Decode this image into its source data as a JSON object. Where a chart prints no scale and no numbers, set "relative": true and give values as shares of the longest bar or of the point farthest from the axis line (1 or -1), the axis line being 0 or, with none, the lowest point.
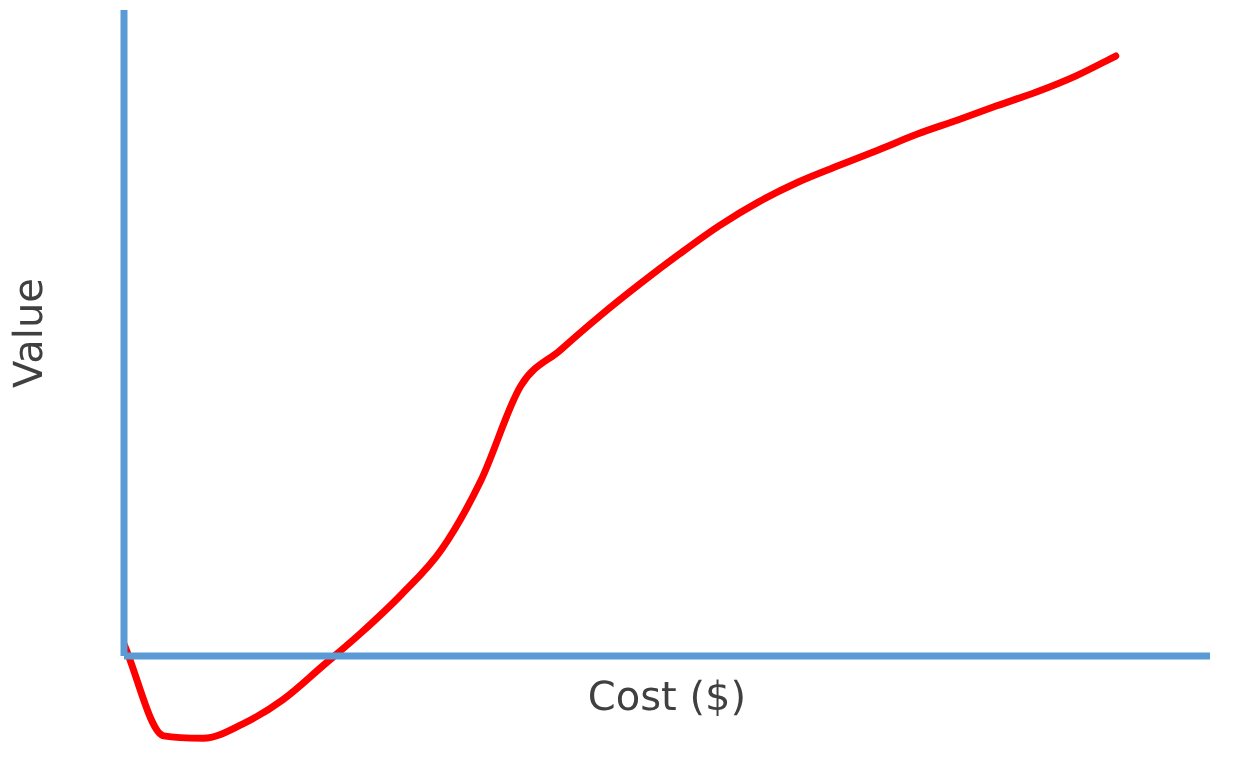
{
  "chart_data": {
    "type": "line",
    "relative": true,
    "xlabel": "Cost ($)",
    "ylabel": "Value",
    "categories": [
      null,
      null,
      null,
      null,
      null,
      null,
      null,
      null,
      null,
      null,
      null,
      null,
      null,
      null,
      null,
      null,
      null,
      null,
      null,
      null,
      null,
      null,
      null,
      null,
      null,
      null
    ],
    "series": [
      {
        "color": "#ff0000",
        "values": [
          0.02,
          -0.133,
          -0.137,
          -0.113,
          -0.073,
          -0.017,
          0.04,
          0.103,
          0.177,
          0.293,
          0.45,
          0.51,
          0.567,
          0.62,
          0.67,
          0.717,
          0.757,
          0.79,
          0.817,
          0.843,
          0.87,
          0.893,
          0.917,
          0.94,
          0.967,
          1.0
        ]
      }
    ],
    "ref_lines": [
      {
        "axis": "y",
        "value": 0,
        "color": "#5b9bd5"
      }
    ],
    "legend": false,
    "marker": "none",
    "line_style": "solid"
  }
}
